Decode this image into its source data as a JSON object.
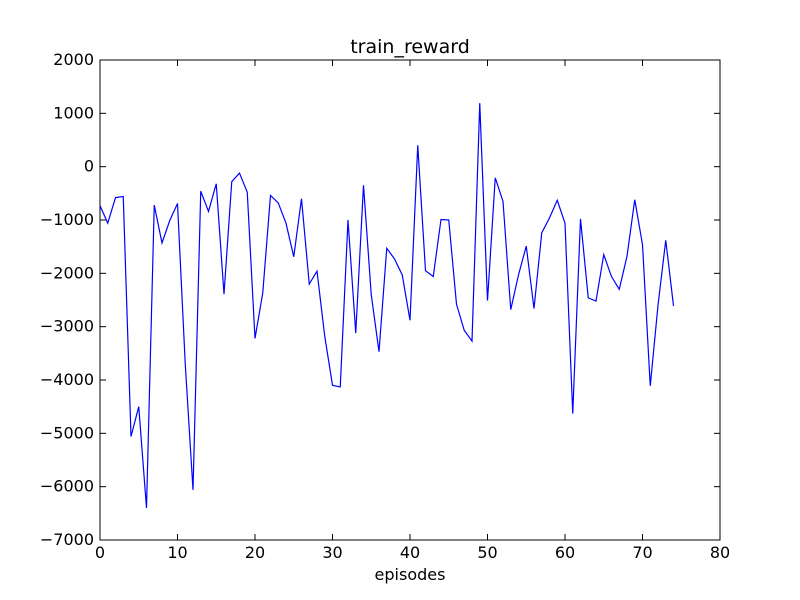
{
  "chart_data": {
    "type": "line",
    "title": "train_reward",
    "xlabel": "episodes",
    "ylabel": "",
    "xlim": [
      0,
      80
    ],
    "ylim": [
      -7000,
      2000
    ],
    "xticks": [
      0,
      10,
      20,
      30,
      40,
      50,
      60,
      70,
      80
    ],
    "yticks": [
      2000,
      1000,
      0,
      -1000,
      -2000,
      -3000,
      -4000,
      -5000,
      -6000,
      -7000
    ],
    "grid": false,
    "series": [
      {
        "color": "#0000ff",
        "x": [
          0,
          1,
          2,
          3,
          4,
          5,
          6,
          7,
          8,
          9,
          10,
          11,
          12,
          13,
          14,
          15,
          16,
          17,
          18,
          19,
          20,
          21,
          22,
          23,
          24,
          25,
          26,
          27,
          28,
          29,
          30,
          31,
          32,
          33,
          34,
          35,
          36,
          37,
          38,
          39,
          40,
          41,
          42,
          43,
          44,
          45,
          46,
          47,
          48,
          49,
          50,
          51,
          52,
          53,
          54,
          55,
          56,
          57,
          58,
          59,
          60,
          61,
          62,
          63,
          64,
          65,
          66,
          67,
          68,
          69,
          70,
          71,
          72,
          73,
          74
        ],
        "y": [
          -730,
          -1060,
          -580,
          -560,
          -5060,
          -4500,
          -6400,
          -720,
          -1430,
          -1010,
          -690,
          -3700,
          -6060,
          -460,
          -840,
          -320,
          -2390,
          -280,
          -120,
          -480,
          -3220,
          -2370,
          -540,
          -680,
          -1060,
          -1690,
          -600,
          -2200,
          -1960,
          -3180,
          -4100,
          -4130,
          -1000,
          -3120,
          -350,
          -2400,
          -3470,
          -1530,
          -1730,
          -2030,
          -2880,
          400,
          -1950,
          -2060,
          -990,
          -1000,
          -2580,
          -3070,
          -3270,
          1190,
          -2510,
          -210,
          -650,
          -2680,
          -2030,
          -1490,
          -2660,
          -1240,
          -960,
          -630,
          -1060,
          -4630,
          -980,
          -2460,
          -2520,
          -1650,
          -2060,
          -2300,
          -1680,
          -620,
          -1460,
          -4110,
          -2600,
          -1380,
          -2610
        ]
      }
    ]
  }
}
